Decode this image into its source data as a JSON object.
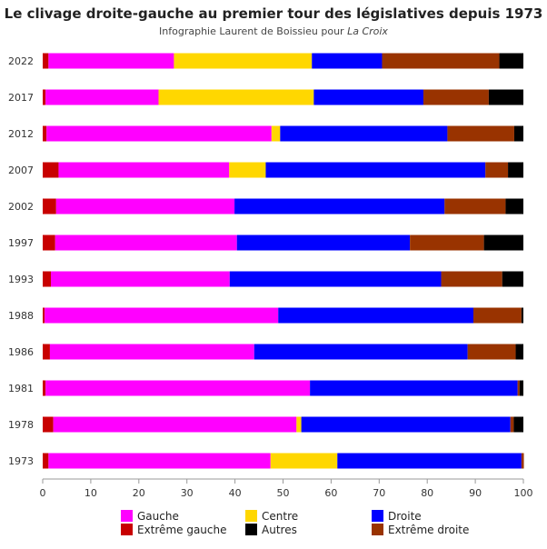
{
  "header": {
    "title": "Le clivage droite-gauche au premier tour des législatives depuis 1973",
    "subtitle_prefix": "Infographie Laurent de Boissieu pour ",
    "subtitle_italic": "La Croix"
  },
  "chart_data": {
    "type": "bar",
    "orientation": "horizontal",
    "stacked": true,
    "categories": [
      "2022",
      "2017",
      "2012",
      "2007",
      "2002",
      "1997",
      "1993",
      "1988",
      "1986",
      "1981",
      "1978",
      "1973"
    ],
    "series": [
      {
        "name": "Extrême gauche",
        "color": "#c80000",
        "values": [
          1.2,
          0.6,
          0.8,
          3.3,
          2.8,
          2.6,
          1.7,
          0.4,
          1.5,
          0.6,
          2.2,
          1.2
        ]
      },
      {
        "name": "Gauche",
        "color": "#ff00ff",
        "values": [
          26.1,
          23.5,
          46.8,
          35.5,
          37.1,
          37.8,
          37.2,
          48.6,
          42.5,
          55.0,
          50.6,
          46.2
        ]
      },
      {
        "name": "Centre",
        "color": "#ffd700",
        "values": [
          28.7,
          32.3,
          1.8,
          7.6,
          0.0,
          0.0,
          0.0,
          0.0,
          0.0,
          0.0,
          1.0,
          13.9
        ]
      },
      {
        "name": "Droite",
        "color": "#0000ff",
        "values": [
          14.6,
          22.8,
          34.8,
          45.7,
          43.7,
          36.0,
          44.0,
          40.6,
          44.4,
          43.2,
          43.5,
          38.3
        ]
      },
      {
        "name": "Extrême droite",
        "color": "#993300",
        "values": [
          24.4,
          13.6,
          13.9,
          4.7,
          12.7,
          15.4,
          12.7,
          10.0,
          10.0,
          0.4,
          0.7,
          0.5
        ]
      },
      {
        "name": "Autres",
        "color": "#000000",
        "values": [
          5.0,
          7.2,
          1.9,
          3.2,
          3.7,
          8.2,
          4.4,
          0.4,
          1.6,
          0.8,
          2.0,
          0.0
        ]
      }
    ],
    "xlim": [
      0,
      100
    ],
    "xticks": [
      "0",
      "10",
      "20",
      "30",
      "40",
      "50",
      "60",
      "70",
      "80",
      "90",
      "100"
    ],
    "grid": false,
    "legend": {
      "placement": "bottom",
      "order": [
        "Gauche",
        "Centre",
        "Droite",
        "Extrême gauche",
        "Autres",
        "Extrême droite"
      ]
    }
  }
}
